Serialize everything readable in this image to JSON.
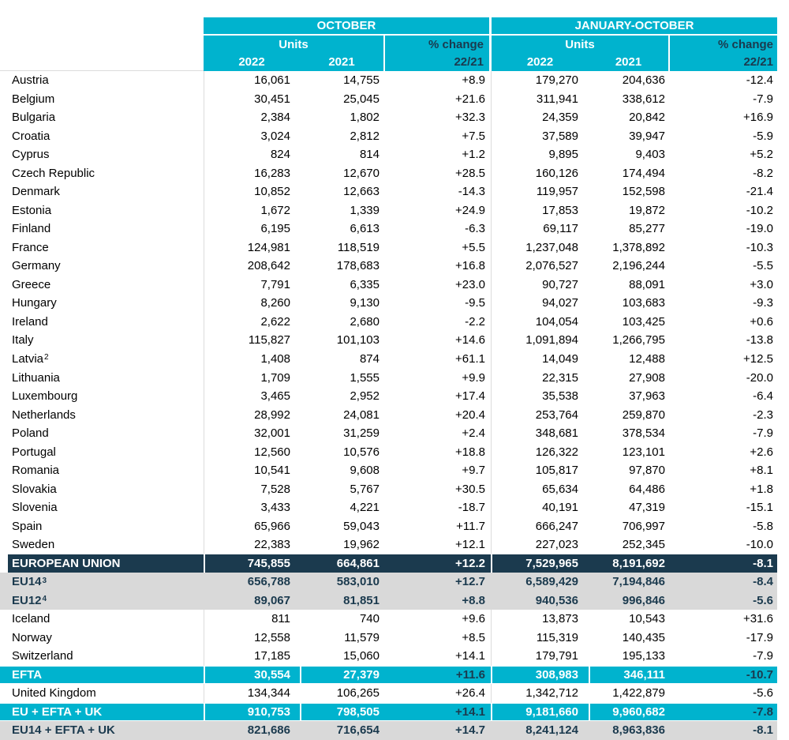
{
  "table": {
    "period_headers": {
      "october": "OCTOBER",
      "ytd": "JANUARY-OCTOBER"
    },
    "col_headers": {
      "units": "Units",
      "pct_change": "% change",
      "y2022": "2022",
      "y2021": "2021",
      "ratio": "22/21"
    },
    "colors": {
      "cyan": "#00b3ce",
      "navy": "#1b3a4e",
      "gray": "#d9d9d9"
    },
    "rows": [
      {
        "label": "Austria",
        "sup": "",
        "style": "plain",
        "oct_2022": "16,061",
        "oct_2021": "14,755",
        "oct_pct": "+8.9",
        "ytd_2022": "179,270",
        "ytd_2021": "204,636",
        "ytd_pct": "-12.4"
      },
      {
        "label": "Belgium",
        "sup": "",
        "style": "plain",
        "oct_2022": "30,451",
        "oct_2021": "25,045",
        "oct_pct": "+21.6",
        "ytd_2022": "311,941",
        "ytd_2021": "338,612",
        "ytd_pct": "-7.9"
      },
      {
        "label": "Bulgaria",
        "sup": "",
        "style": "plain",
        "oct_2022": "2,384",
        "oct_2021": "1,802",
        "oct_pct": "+32.3",
        "ytd_2022": "24,359",
        "ytd_2021": "20,842",
        "ytd_pct": "+16.9"
      },
      {
        "label": "Croatia",
        "sup": "",
        "style": "plain",
        "oct_2022": "3,024",
        "oct_2021": "2,812",
        "oct_pct": "+7.5",
        "ytd_2022": "37,589",
        "ytd_2021": "39,947",
        "ytd_pct": "-5.9"
      },
      {
        "label": "Cyprus",
        "sup": "",
        "style": "plain",
        "oct_2022": "824",
        "oct_2021": "814",
        "oct_pct": "+1.2",
        "ytd_2022": "9,895",
        "ytd_2021": "9,403",
        "ytd_pct": "+5.2"
      },
      {
        "label": "Czech Republic",
        "sup": "",
        "style": "plain",
        "oct_2022": "16,283",
        "oct_2021": "12,670",
        "oct_pct": "+28.5",
        "ytd_2022": "160,126",
        "ytd_2021": "174,494",
        "ytd_pct": "-8.2"
      },
      {
        "label": "Denmark",
        "sup": "",
        "style": "plain",
        "oct_2022": "10,852",
        "oct_2021": "12,663",
        "oct_pct": "-14.3",
        "ytd_2022": "119,957",
        "ytd_2021": "152,598",
        "ytd_pct": "-21.4"
      },
      {
        "label": "Estonia",
        "sup": "",
        "style": "plain",
        "oct_2022": "1,672",
        "oct_2021": "1,339",
        "oct_pct": "+24.9",
        "ytd_2022": "17,853",
        "ytd_2021": "19,872",
        "ytd_pct": "-10.2"
      },
      {
        "label": "Finland",
        "sup": "",
        "style": "plain",
        "oct_2022": "6,195",
        "oct_2021": "6,613",
        "oct_pct": "-6.3",
        "ytd_2022": "69,117",
        "ytd_2021": "85,277",
        "ytd_pct": "-19.0"
      },
      {
        "label": "France",
        "sup": "",
        "style": "plain",
        "oct_2022": "124,981",
        "oct_2021": "118,519",
        "oct_pct": "+5.5",
        "ytd_2022": "1,237,048",
        "ytd_2021": "1,378,892",
        "ytd_pct": "-10.3"
      },
      {
        "label": "Germany",
        "sup": "",
        "style": "plain",
        "oct_2022": "208,642",
        "oct_2021": "178,683",
        "oct_pct": "+16.8",
        "ytd_2022": "2,076,527",
        "ytd_2021": "2,196,244",
        "ytd_pct": "-5.5"
      },
      {
        "label": "Greece",
        "sup": "",
        "style": "plain",
        "oct_2022": "7,791",
        "oct_2021": "6,335",
        "oct_pct": "+23.0",
        "ytd_2022": "90,727",
        "ytd_2021": "88,091",
        "ytd_pct": "+3.0"
      },
      {
        "label": "Hungary",
        "sup": "",
        "style": "plain",
        "oct_2022": "8,260",
        "oct_2021": "9,130",
        "oct_pct": "-9.5",
        "ytd_2022": "94,027",
        "ytd_2021": "103,683",
        "ytd_pct": "-9.3"
      },
      {
        "label": "Ireland",
        "sup": "",
        "style": "plain",
        "oct_2022": "2,622",
        "oct_2021": "2,680",
        "oct_pct": "-2.2",
        "ytd_2022": "104,054",
        "ytd_2021": "103,425",
        "ytd_pct": "+0.6"
      },
      {
        "label": "Italy",
        "sup": "",
        "style": "plain",
        "oct_2022": "115,827",
        "oct_2021": "101,103",
        "oct_pct": "+14.6",
        "ytd_2022": "1,091,894",
        "ytd_2021": "1,266,795",
        "ytd_pct": "-13.8"
      },
      {
        "label": "Latvia",
        "sup": "2",
        "style": "plain",
        "oct_2022": "1,408",
        "oct_2021": "874",
        "oct_pct": "+61.1",
        "ytd_2022": "14,049",
        "ytd_2021": "12,488",
        "ytd_pct": "+12.5"
      },
      {
        "label": "Lithuania",
        "sup": "",
        "style": "plain",
        "oct_2022": "1,709",
        "oct_2021": "1,555",
        "oct_pct": "+9.9",
        "ytd_2022": "22,315",
        "ytd_2021": "27,908",
        "ytd_pct": "-20.0"
      },
      {
        "label": "Luxembourg",
        "sup": "",
        "style": "plain",
        "oct_2022": "3,465",
        "oct_2021": "2,952",
        "oct_pct": "+17.4",
        "ytd_2022": "35,538",
        "ytd_2021": "37,963",
        "ytd_pct": "-6.4"
      },
      {
        "label": "Netherlands",
        "sup": "",
        "style": "plain",
        "oct_2022": "28,992",
        "oct_2021": "24,081",
        "oct_pct": "+20.4",
        "ytd_2022": "253,764",
        "ytd_2021": "259,870",
        "ytd_pct": "-2.3"
      },
      {
        "label": "Poland",
        "sup": "",
        "style": "plain",
        "oct_2022": "32,001",
        "oct_2021": "31,259",
        "oct_pct": "+2.4",
        "ytd_2022": "348,681",
        "ytd_2021": "378,534",
        "ytd_pct": "-7.9"
      },
      {
        "label": "Portugal",
        "sup": "",
        "style": "plain",
        "oct_2022": "12,560",
        "oct_2021": "10,576",
        "oct_pct": "+18.8",
        "ytd_2022": "126,322",
        "ytd_2021": "123,101",
        "ytd_pct": "+2.6"
      },
      {
        "label": "Romania",
        "sup": "",
        "style": "plain",
        "oct_2022": "10,541",
        "oct_2021": "9,608",
        "oct_pct": "+9.7",
        "ytd_2022": "105,817",
        "ytd_2021": "97,870",
        "ytd_pct": "+8.1"
      },
      {
        "label": "Slovakia",
        "sup": "",
        "style": "plain",
        "oct_2022": "7,528",
        "oct_2021": "5,767",
        "oct_pct": "+30.5",
        "ytd_2022": "65,634",
        "ytd_2021": "64,486",
        "ytd_pct": "+1.8"
      },
      {
        "label": "Slovenia",
        "sup": "",
        "style": "plain",
        "oct_2022": "3,433",
        "oct_2021": "4,221",
        "oct_pct": "-18.7",
        "ytd_2022": "40,191",
        "ytd_2021": "47,319",
        "ytd_pct": "-15.1"
      },
      {
        "label": "Spain",
        "sup": "",
        "style": "plain",
        "oct_2022": "65,966",
        "oct_2021": "59,043",
        "oct_pct": "+11.7",
        "ytd_2022": "666,247",
        "ytd_2021": "706,997",
        "ytd_pct": "-5.8"
      },
      {
        "label": "Sweden",
        "sup": "",
        "style": "plain",
        "oct_2022": "22,383",
        "oct_2021": "19,962",
        "oct_pct": "+12.1",
        "ytd_2022": "227,023",
        "ytd_2021": "252,345",
        "ytd_pct": "-10.0"
      },
      {
        "label": "EUROPEAN UNION",
        "sup": "",
        "style": "navy",
        "oct_2022": "745,855",
        "oct_2021": "664,861",
        "oct_pct": "+12.2",
        "ytd_2022": "7,529,965",
        "ytd_2021": "8,191,692",
        "ytd_pct": "-8.1"
      },
      {
        "label": "EU14",
        "sup": "3",
        "style": "gray",
        "oct_2022": "656,788",
        "oct_2021": "583,010",
        "oct_pct": "+12.7",
        "ytd_2022": "6,589,429",
        "ytd_2021": "7,194,846",
        "ytd_pct": "-8.4"
      },
      {
        "label": "EU12",
        "sup": "4",
        "style": "gray",
        "oct_2022": "89,067",
        "oct_2021": "81,851",
        "oct_pct": "+8.8",
        "ytd_2022": "940,536",
        "ytd_2021": "996,846",
        "ytd_pct": "-5.6"
      },
      {
        "label": "Iceland",
        "sup": "",
        "style": "plain",
        "oct_2022": "811",
        "oct_2021": "740",
        "oct_pct": "+9.6",
        "ytd_2022": "13,873",
        "ytd_2021": "10,543",
        "ytd_pct": "+31.6"
      },
      {
        "label": "Norway",
        "sup": "",
        "style": "plain",
        "oct_2022": "12,558",
        "oct_2021": "11,579",
        "oct_pct": "+8.5",
        "ytd_2022": "115,319",
        "ytd_2021": "140,435",
        "ytd_pct": "-17.9"
      },
      {
        "label": "Switzerland",
        "sup": "",
        "style": "plain",
        "oct_2022": "17,185",
        "oct_2021": "15,060",
        "oct_pct": "+14.1",
        "ytd_2022": "179,791",
        "ytd_2021": "195,133",
        "ytd_pct": "-7.9"
      },
      {
        "label": "EFTA",
        "sup": "",
        "style": "cyan",
        "oct_2022": "30,554",
        "oct_2021": "27,379",
        "oct_pct": "+11.6",
        "ytd_2022": "308,983",
        "ytd_2021": "346,111",
        "ytd_pct": "-10.7"
      },
      {
        "label": "United Kingdom",
        "sup": "",
        "style": "plain",
        "oct_2022": "134,344",
        "oct_2021": "106,265",
        "oct_pct": "+26.4",
        "ytd_2022": "1,342,712",
        "ytd_2021": "1,422,879",
        "ytd_pct": "-5.6"
      },
      {
        "label": "EU + EFTA + UK",
        "sup": "",
        "style": "cyan",
        "oct_2022": "910,753",
        "oct_2021": "798,505",
        "oct_pct": "+14.1",
        "ytd_2022": "9,181,660",
        "ytd_2021": "9,960,682",
        "ytd_pct": "-7.8"
      },
      {
        "label": "EU14 + EFTA + UK",
        "sup": "",
        "style": "gray",
        "oct_2022": "821,686",
        "oct_2021": "716,654",
        "oct_pct": "+14.7",
        "ytd_2022": "8,241,124",
        "ytd_2021": "8,963,836",
        "ytd_pct": "-8.1"
      }
    ]
  }
}
